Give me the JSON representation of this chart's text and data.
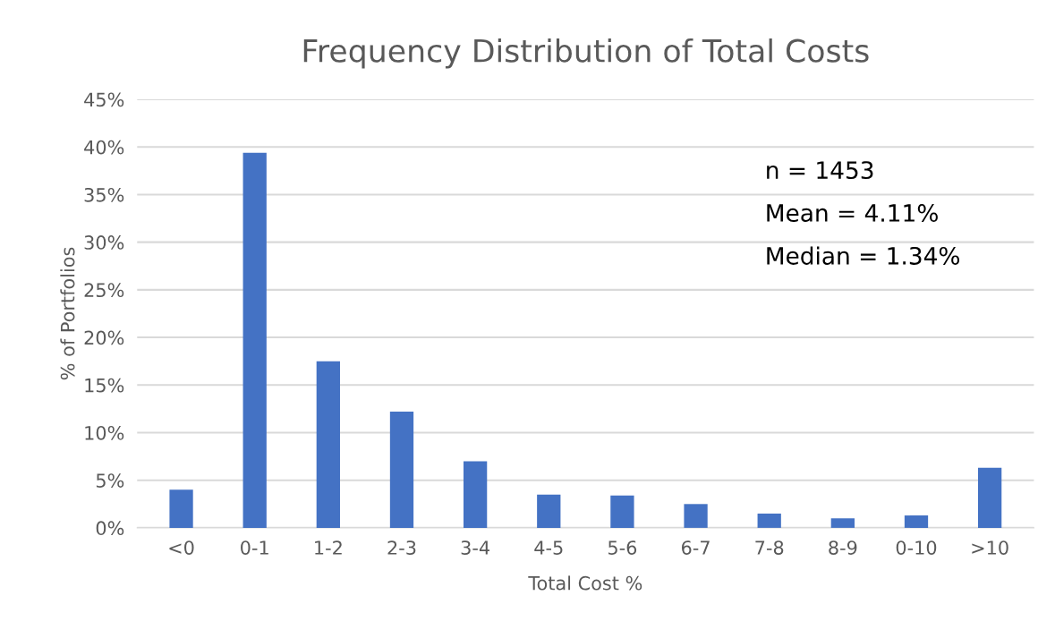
{
  "chart_data": {
    "type": "bar",
    "title": "Frequency Distribution of Total Costs",
    "xlabel": "Total Cost %",
    "ylabel": "% of Portfolios",
    "categories": [
      "<0",
      "0-1",
      "1-2",
      "2-3",
      "3-4",
      "4-5",
      "5-6",
      "6-7",
      "7-8",
      "8-9",
      "0-10",
      ">10"
    ],
    "values": [
      4.0,
      39.4,
      17.5,
      12.2,
      7.0,
      3.5,
      3.4,
      2.5,
      1.5,
      1.0,
      1.3,
      6.3
    ],
    "color": "#4472c4",
    "ylim": [
      0,
      45
    ],
    "yticks": [
      {
        "value": 0,
        "label": "0%"
      },
      {
        "value": 5,
        "label": "5%"
      },
      {
        "value": 10,
        "label": "10%"
      },
      {
        "value": 15,
        "label": "15%"
      },
      {
        "value": 20,
        "label": "20%"
      },
      {
        "value": 25,
        "label": "25%"
      },
      {
        "value": 30,
        "label": "30%"
      },
      {
        "value": 35,
        "label": "35%"
      },
      {
        "value": 40,
        "label": "40%"
      },
      {
        "value": 45,
        "label": "45%"
      }
    ],
    "grid": "y",
    "annotations": [
      "n = 1453",
      "Mean = 4.11%",
      "Median = 1.34%"
    ]
  }
}
